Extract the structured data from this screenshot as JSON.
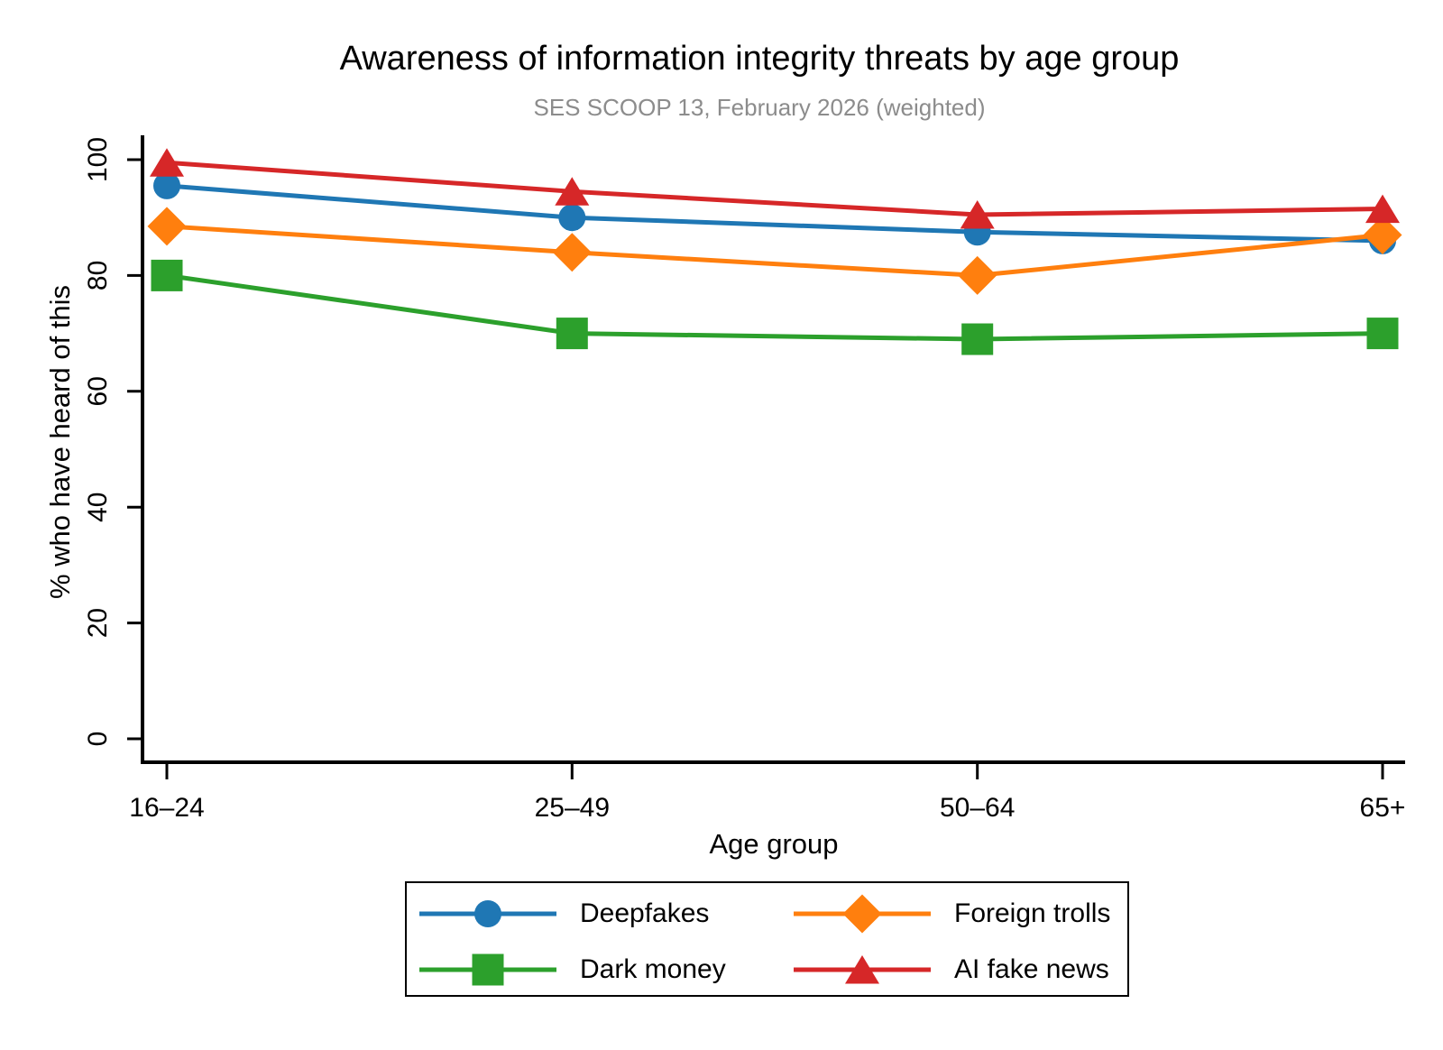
{
  "title": "Awareness of information integrity threats by age group",
  "subtitle": "SES SCOOP 13, February 2026 (weighted)",
  "chart_data": {
    "type": "line",
    "categories": [
      "16–24",
      "25–49",
      "50–64",
      "65+"
    ],
    "series": [
      {
        "name": "Deepfakes",
        "color": "#1f77b4",
        "marker": "circle",
        "values": [
          95.5,
          90.0,
          87.5,
          86.0
        ]
      },
      {
        "name": "Foreign trolls",
        "color": "#ff7f0e",
        "marker": "diamond",
        "values": [
          88.5,
          84.0,
          80.0,
          87.0
        ]
      },
      {
        "name": "Dark money",
        "color": "#2ca02c",
        "marker": "square",
        "values": [
          80.0,
          70.0,
          69.0,
          70.0
        ]
      },
      {
        "name": "AI fake news",
        "color": "#d62728",
        "marker": "triangle",
        "values": [
          99.5,
          94.5,
          90.5,
          91.5
        ]
      }
    ],
    "xlabel": "Age group",
    "ylabel": "% who have heard of this",
    "ylim": [
      0,
      100
    ],
    "yticks": [
      0,
      20,
      40,
      60,
      80,
      100
    ],
    "grid": false,
    "legend_position": "bottom",
    "axis_color": "#000000",
    "subtitle_color": "#8c8c8c",
    "background_color": "#ffffff"
  }
}
